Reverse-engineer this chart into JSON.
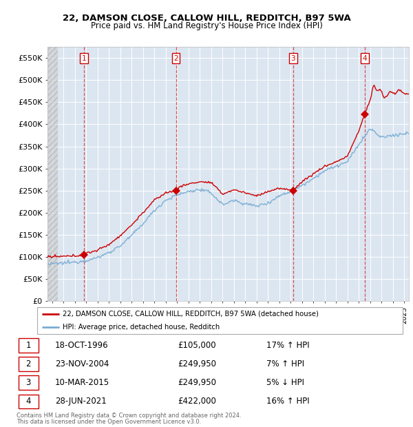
{
  "title": "22, DAMSON CLOSE, CALLOW HILL, REDDITCH, B97 5WA",
  "subtitle": "Price paid vs. HM Land Registry's House Price Index (HPI)",
  "ylim": [
    0,
    575000
  ],
  "yticks": [
    0,
    50000,
    100000,
    150000,
    200000,
    250000,
    300000,
    350000,
    400000,
    450000,
    500000,
    550000
  ],
  "ytick_labels": [
    "£0",
    "£50K",
    "£100K",
    "£150K",
    "£200K",
    "£250K",
    "£300K",
    "£350K",
    "£400K",
    "£450K",
    "£500K",
    "£550K"
  ],
  "xlim_start": 1993.6,
  "xlim_end": 2025.4,
  "hatch_end": 1994.5,
  "sales": [
    {
      "year": 1996.8,
      "price": 105000,
      "label": "1",
      "date": "18-OCT-1996",
      "price_str": "£105,000",
      "hpi_str": "17% ↑ HPI"
    },
    {
      "year": 2004.9,
      "price": 249950,
      "label": "2",
      "date": "23-NOV-2004",
      "price_str": "£249,950",
      "hpi_str": "7% ↑ HPI"
    },
    {
      "year": 2015.2,
      "price": 249950,
      "label": "3",
      "date": "10-MAR-2015",
      "price_str": "£249,950",
      "hpi_str": "5% ↓ HPI"
    },
    {
      "year": 2021.5,
      "price": 422000,
      "label": "4",
      "date": "28-JUN-2021",
      "price_str": "£422,000",
      "hpi_str": "16% ↑ HPI"
    }
  ],
  "legend_line1": "22, DAMSON CLOSE, CALLOW HILL, REDDITCH, B97 5WA (detached house)",
  "legend_line2": "HPI: Average price, detached house, Redditch",
  "footer1": "Contains HM Land Registry data © Crown copyright and database right 2024.",
  "footer2": "This data is licensed under the Open Government Licence v3.0.",
  "bg_color": "#dce6f1",
  "grid_color": "#ffffff",
  "red_line_color": "#cc0000",
  "blue_line_color": "#7aadd4",
  "sale_marker_color": "#cc0000"
}
